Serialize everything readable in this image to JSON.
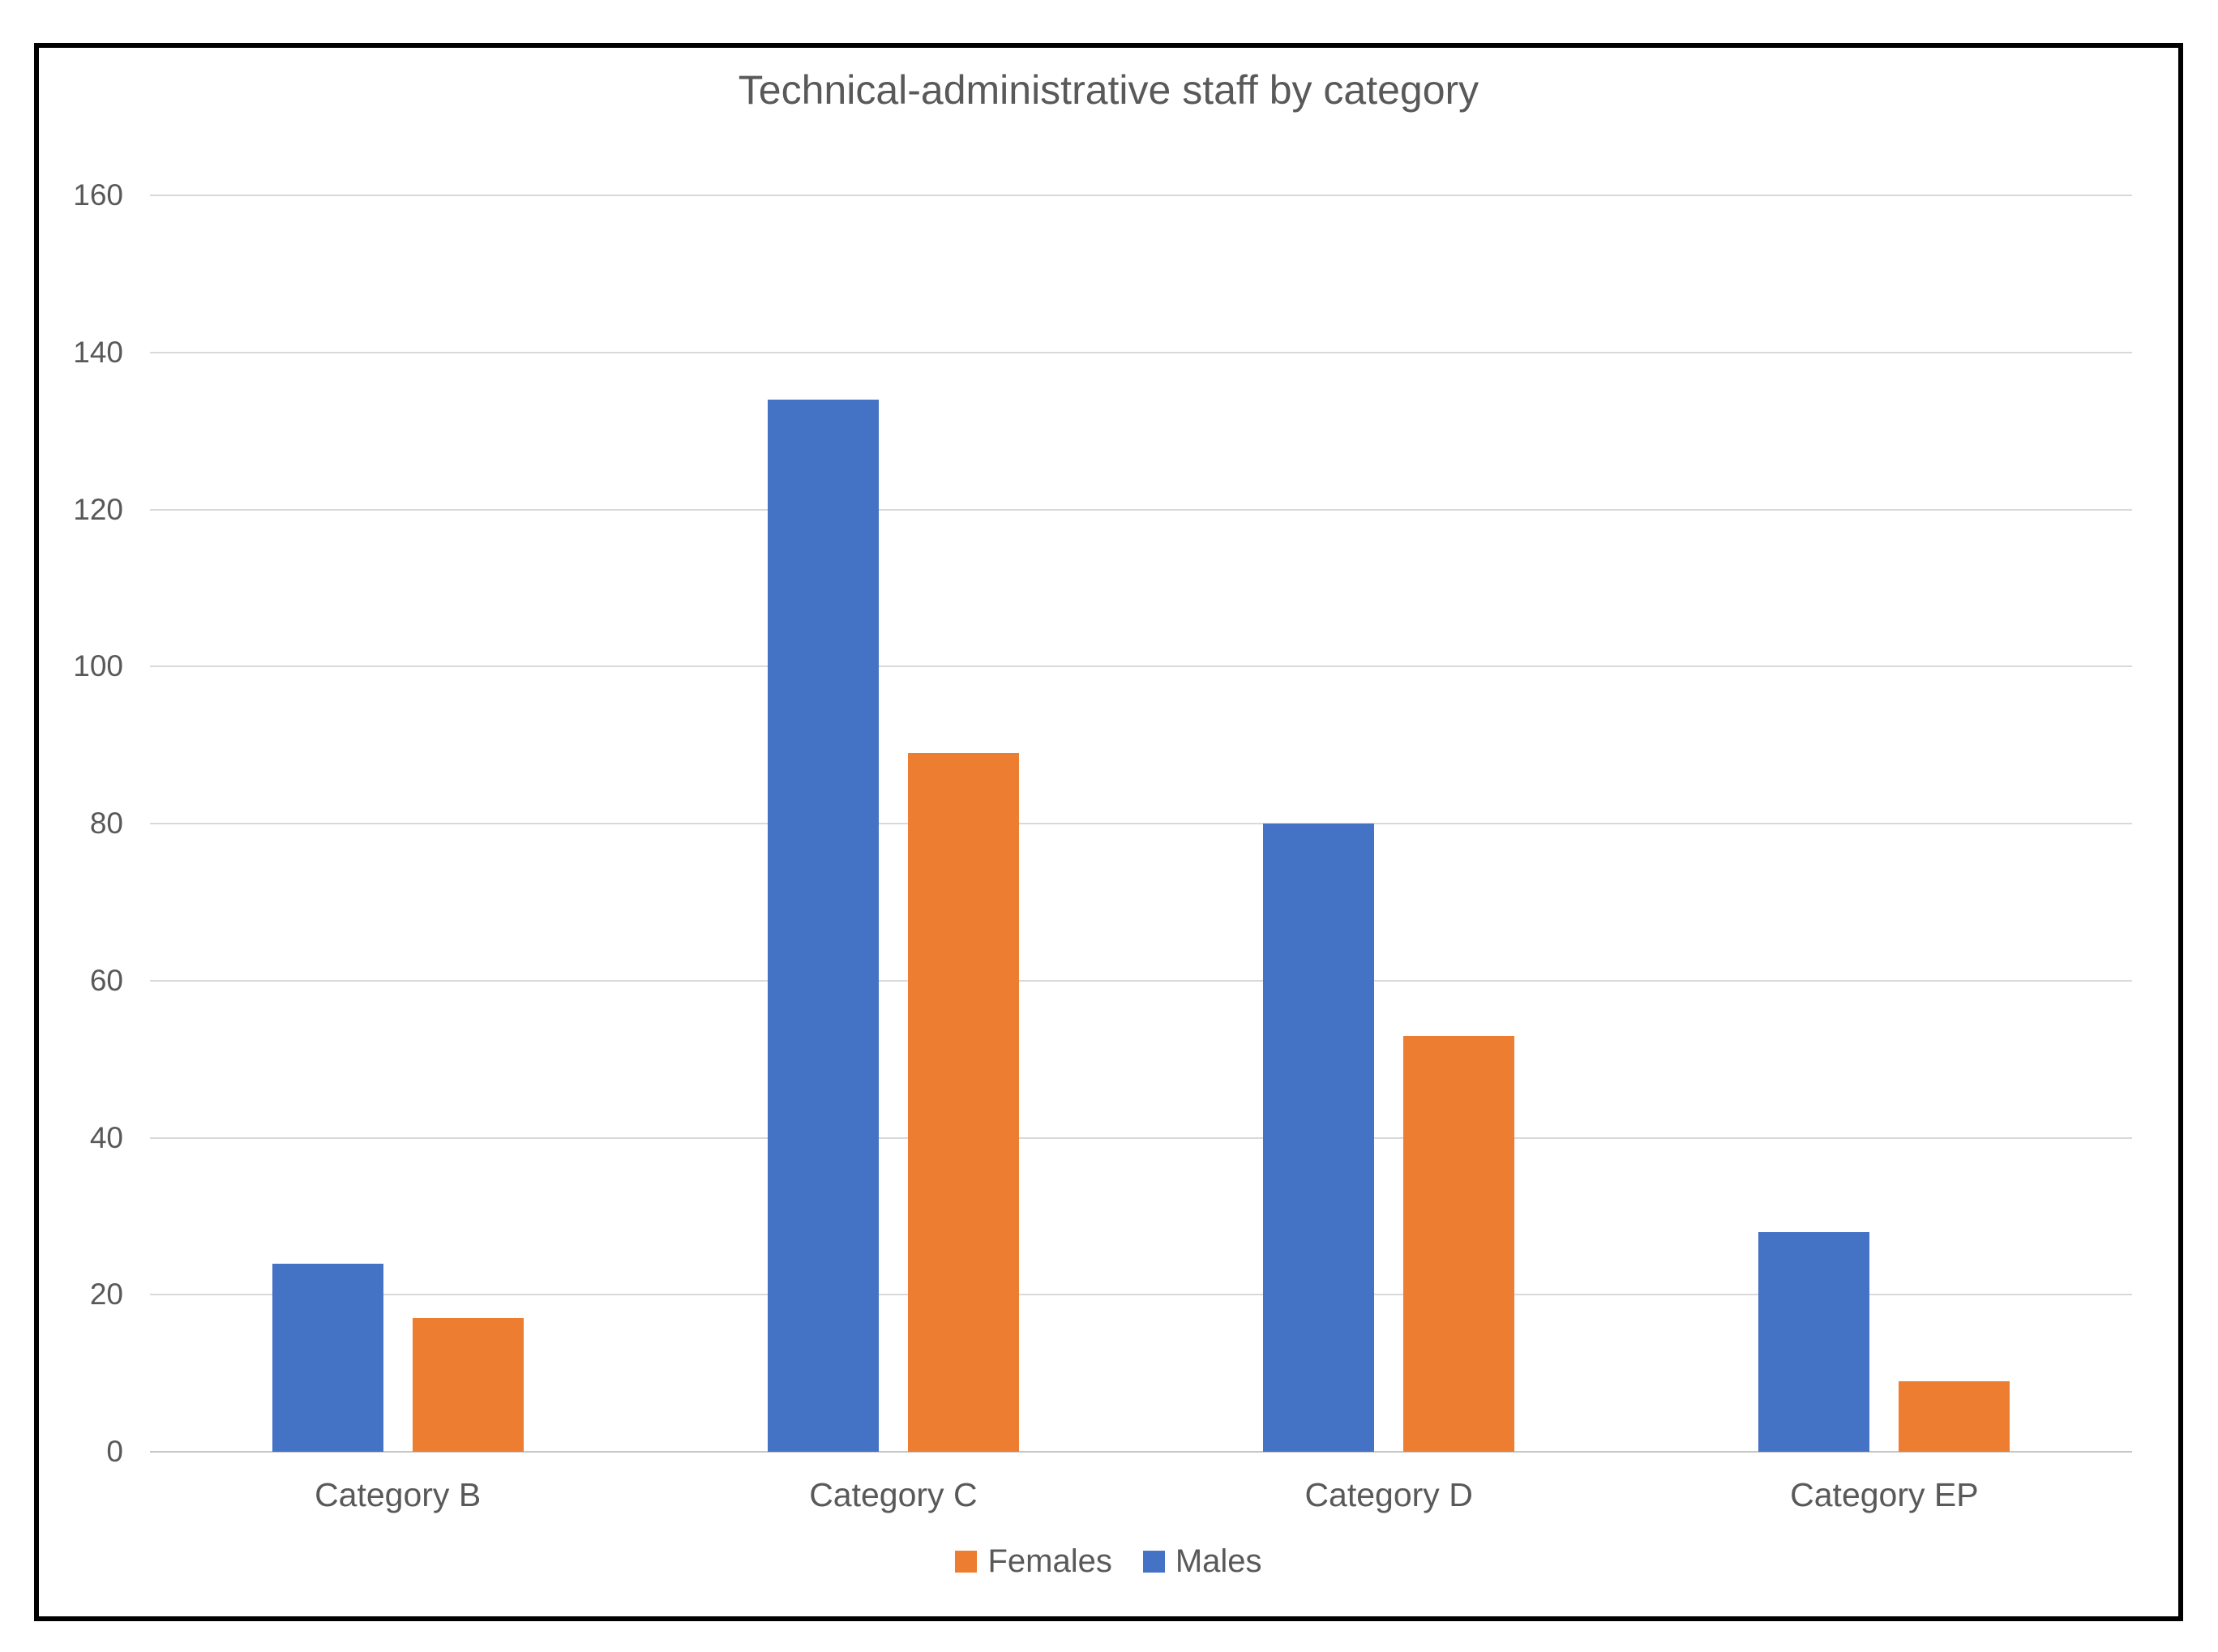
{
  "chart_data": {
    "type": "bar",
    "title": "Technical-administrative staff by category",
    "categories": [
      "Category B",
      "Category C",
      "Category D",
      "Category EP"
    ],
    "series": [
      {
        "name": "Males",
        "color": "#4472C4",
        "values": [
          24,
          134,
          80,
          28
        ]
      },
      {
        "name": "Females",
        "color": "#ED7D31",
        "values": [
          17,
          89,
          53,
          9
        ]
      }
    ],
    "y_axis": {
      "min": 0,
      "max": 160,
      "step": 20,
      "ticks": [
        0,
        20,
        40,
        60,
        80,
        100,
        120,
        140,
        160
      ]
    },
    "grid": true,
    "legend": {
      "position": "bottom",
      "entries": [
        "Females",
        "Males"
      ]
    },
    "colors": {
      "males_bar": "#4472C4",
      "females_bar": "#ED7D31",
      "gridline": "#D9D9D9",
      "axis_line": "#C6C6C6",
      "text": "#595959",
      "frame_border": "#000000",
      "background": "#FFFFFF"
    }
  }
}
